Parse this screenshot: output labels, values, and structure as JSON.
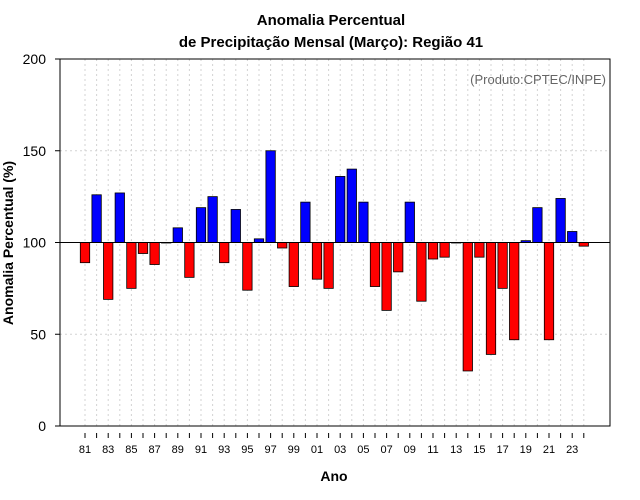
{
  "chart_data": {
    "type": "bar",
    "title": "Anomalia Percentual",
    "subtitle": "de Precipitação Mensal (Março): Região 41",
    "xlabel": "Ano",
    "ylabel": "Anomalia Percentual (%)",
    "annotation": "(Produto:CPTEC/INPE)",
    "baseline": 100,
    "ylim": [
      0,
      200
    ],
    "yticks": [
      0,
      50,
      100,
      150,
      200
    ],
    "grid": true,
    "colors": {
      "above": "#0000ff",
      "below": "#ff0000",
      "outline": "#000000",
      "grid": "#d3d3d3"
    },
    "categories": [
      "1981",
      "1982",
      "1983",
      "1984",
      "1985",
      "1986",
      "1987",
      "1988",
      "1989",
      "1990",
      "1991",
      "1992",
      "1993",
      "1994",
      "1995",
      "1996",
      "1997",
      "1998",
      "1999",
      "2000",
      "2001",
      "2002",
      "2003",
      "2004",
      "2005",
      "2006",
      "2007",
      "2008",
      "2009",
      "2010",
      "2011",
      "2012",
      "2013",
      "2014",
      "2015",
      "2016",
      "2017",
      "2018",
      "2019",
      "2020",
      "2021",
      "2022",
      "2023",
      "2024"
    ],
    "values": [
      89,
      126,
      69,
      127,
      75,
      94,
      88,
      100,
      108,
      81,
      119,
      125,
      89,
      118,
      74,
      102,
      150,
      97,
      76,
      122,
      80,
      75,
      136,
      140,
      122,
      76,
      63,
      84,
      122,
      68,
      91,
      92,
      100,
      30,
      92,
      39,
      75,
      47,
      101,
      119,
      47,
      124,
      106,
      98
    ],
    "xticklabels": [
      "81",
      "83",
      "85",
      "87",
      "89",
      "91",
      "93",
      "95",
      "97",
      "99",
      "01",
      "03",
      "05",
      "07",
      "09",
      "11",
      "13",
      "15",
      "17",
      "19",
      "21",
      "23"
    ]
  }
}
